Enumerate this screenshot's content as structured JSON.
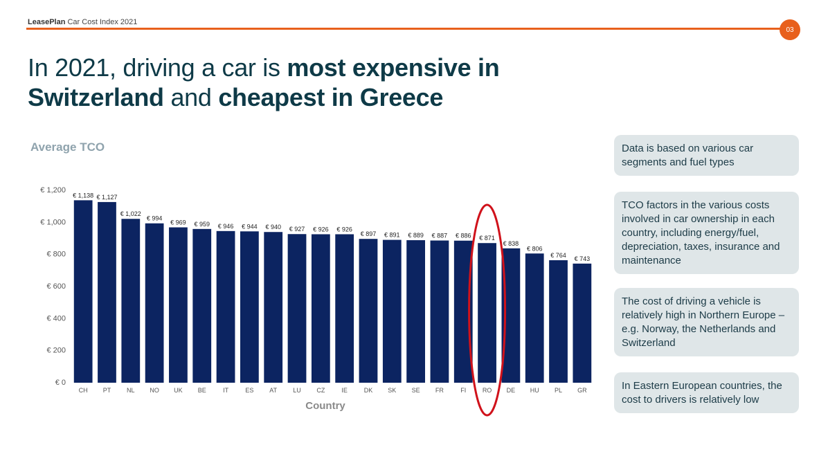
{
  "header": {
    "brand": "LeasePlan",
    "report": "Car Cost Index 2021",
    "page_number": "03"
  },
  "headline": {
    "part1": "In 2021, driving a car is ",
    "bold1": "most expensive in Switzerland",
    "part2": " and ",
    "bold2": "cheapest in Greece"
  },
  "colors": {
    "accent": "#e8601c",
    "bar": "#0c2461",
    "highlight_ellipse": "#d0121b",
    "note_bg": "#dfe6e8"
  },
  "notes": [
    "Data is based on various car segments and fuel types",
    "TCO factors in the various costs involved in car ownership in each country, including energy/fuel, depreciation, taxes, insurance and maintenance",
    "The cost of driving a vehicle is relatively high in Northern Europe – e.g. Norway, the Netherlands and Switzerland",
    "In Eastern European countries, the cost to drivers is relatively low"
  ],
  "chart_data": {
    "type": "bar",
    "title": "Average TCO",
    "xlabel": "Country",
    "ylabel": "",
    "ylim": [
      0,
      1200
    ],
    "yticks": [
      0,
      200,
      400,
      600,
      800,
      1000,
      1200
    ],
    "ytick_labels": [
      "€ 0",
      "€ 200",
      "€ 400",
      "€ 600",
      "€ 800",
      "€ 1,000",
      "€ 1,200"
    ],
    "categories": [
      "CH",
      "PT",
      "NL",
      "NO",
      "UK",
      "BE",
      "IT",
      "ES",
      "AT",
      "LU",
      "CZ",
      "IE",
      "DK",
      "SK",
      "SE",
      "FR",
      "FI",
      "RO",
      "DE",
      "HU",
      "PL",
      "GR"
    ],
    "values": [
      1138,
      1127,
      1022,
      994,
      969,
      959,
      946,
      944,
      940,
      927,
      926,
      926,
      897,
      891,
      889,
      887,
      886,
      871,
      838,
      806,
      764,
      743
    ],
    "value_labels": [
      "€ 1,138",
      "€ 1,127",
      "€ 1,022",
      "€ 994",
      "€ 969",
      "€ 959",
      "€ 946",
      "€ 944",
      "€ 940",
      "€ 927",
      "€ 926",
      "€ 926",
      "€ 897",
      "€ 891",
      "€ 889",
      "€ 887",
      "€ 886",
      "€ 871",
      "€ 838",
      "€ 806",
      "€ 764",
      "€ 743"
    ],
    "grid": false,
    "highlighted_category": "RO"
  }
}
